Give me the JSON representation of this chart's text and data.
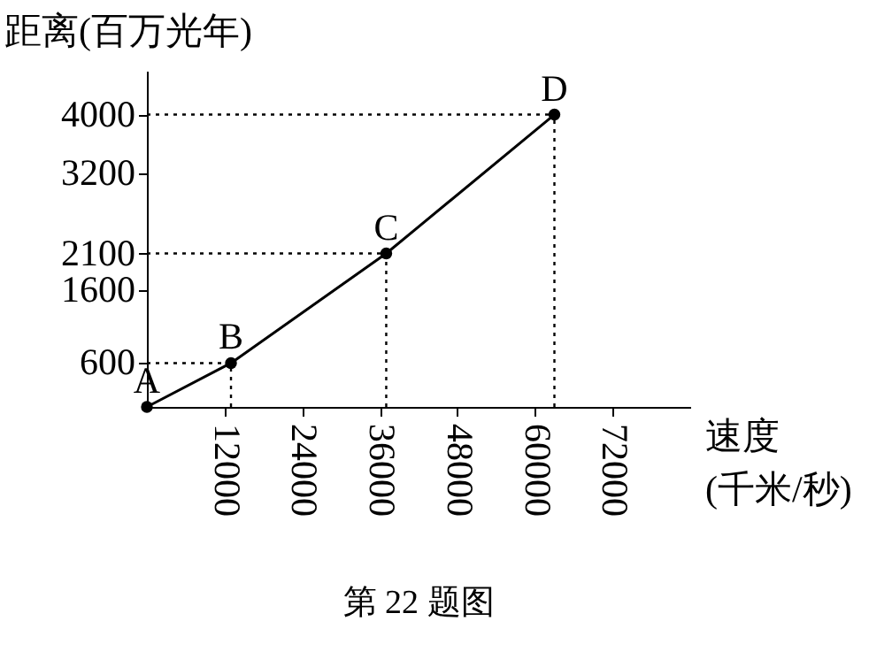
{
  "chart_data": {
    "type": "line",
    "xlabel": "速度(千米/秒)",
    "ylabel": "距离(百万光年)",
    "x": [
      0,
      13000,
      37000,
      63000
    ],
    "values": [
      0,
      600,
      2100,
      4000
    ],
    "color": "#000000",
    "marker": "circle",
    "line_style": "solid",
    "xlim": [
      0,
      84000
    ],
    "ylim": [
      0,
      4600
    ],
    "xticks": [
      12000,
      24000,
      36000,
      48000,
      60000,
      72000
    ],
    "yticks": [
      600,
      1600,
      2100,
      3200,
      4000
    ],
    "annotations": [
      {
        "text": "A",
        "x": 0,
        "y": 0
      },
      {
        "text": "B",
        "x": 13000,
        "y": 600
      },
      {
        "text": "C",
        "x": 37000,
        "y": 2100
      },
      {
        "text": "D",
        "x": 63000,
        "y": 4000
      },
      "第 22 题图"
    ]
  }
}
